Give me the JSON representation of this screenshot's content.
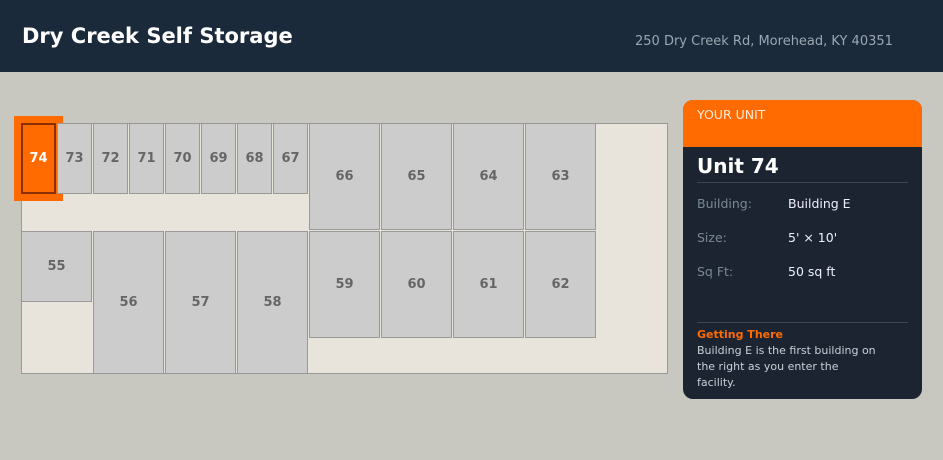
{
  "header": {
    "title": "Dry Creek Self Storage",
    "address": "250 Dry Creek Rd, Morehead, KY 40351"
  },
  "map": {
    "selected_unit": "74",
    "highlight_color": "#ff6b00",
    "units": [
      "74",
      "73",
      "72",
      "71",
      "70",
      "69",
      "68",
      "67",
      "66",
      "65",
      "64",
      "63",
      "55",
      "56",
      "57",
      "58",
      "59",
      "60",
      "61",
      "62"
    ]
  },
  "panel": {
    "heading": "YOUR UNIT",
    "unit_name": "Unit 74",
    "fields": [
      {
        "label": "Building:",
        "value": "Building E"
      },
      {
        "label": "Size:",
        "value": "5' × 10'"
      },
      {
        "label": "Sq Ft:",
        "value": "50 sq ft"
      }
    ],
    "directions_title": "Getting There",
    "directions_text": "Building E is the first building on the right as you enter the facility."
  }
}
